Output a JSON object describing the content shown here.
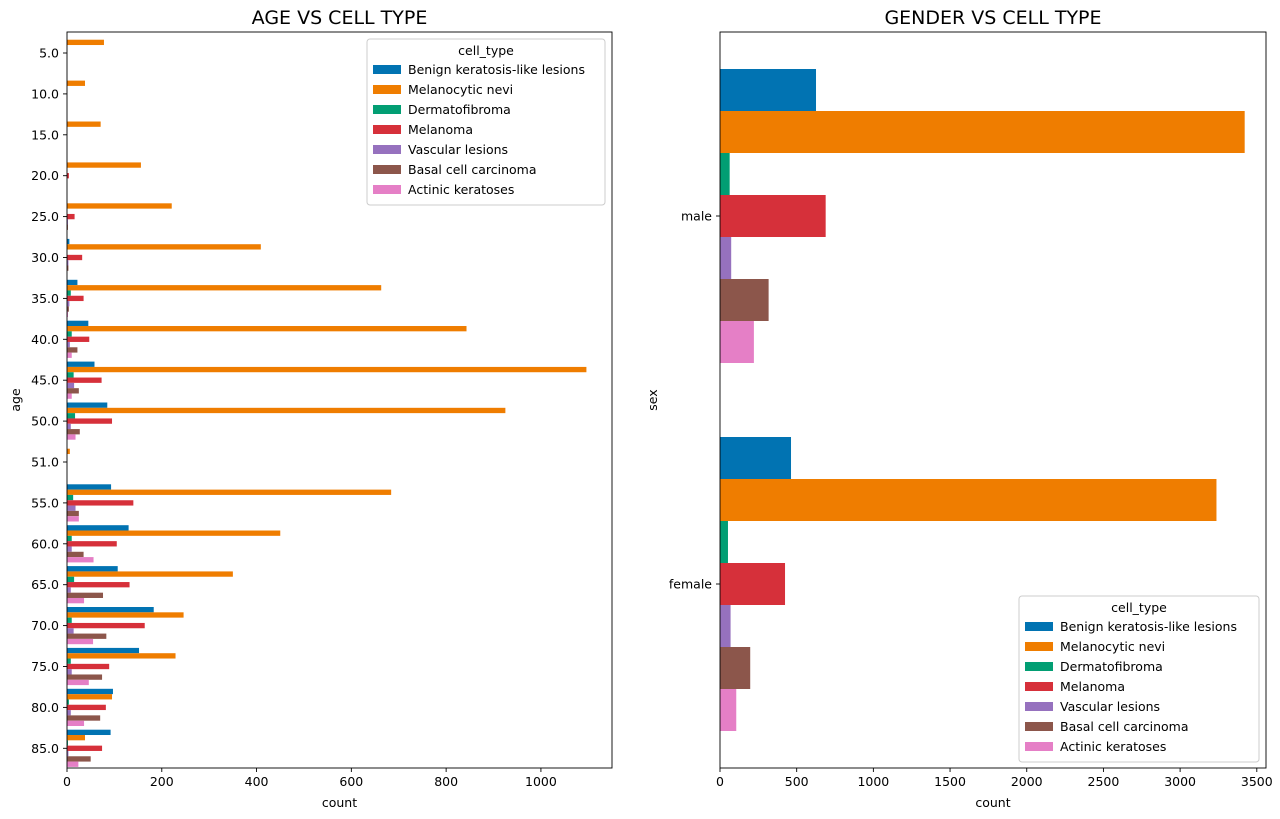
{
  "colors": {
    "Benign keratosis-like lesions": "#0173b2",
    "Melanocytic nevi": "#ef7d00",
    "Dermatofibroma": "#029e73",
    "Melanoma": "#d6303a",
    "Vascular lesions": "#9671be",
    "Basal cell carcinoma": "#8c564b",
    "Actinic keratoses": "#e57fc6"
  },
  "chart_data": [
    {
      "type": "bar",
      "orientation": "horizontal",
      "title": "AGE VS CELL TYPE",
      "xlabel": "count",
      "ylabel": "age",
      "xlim": [
        0,
        1150
      ],
      "xticks": [
        0,
        200,
        400,
        600,
        800,
        1000
      ],
      "legend": {
        "title": "cell_type",
        "placement": "top-right"
      },
      "categories": [
        "5.0",
        "10.0",
        "15.0",
        "20.0",
        "25.0",
        "30.0",
        "35.0",
        "40.0",
        "45.0",
        "50.0",
        "51.0",
        "55.0",
        "60.0",
        "65.0",
        "70.0",
        "75.0",
        "80.0",
        "85.0"
      ],
      "series": [
        {
          "name": "Benign keratosis-like lesions",
          "values": [
            0,
            0,
            0,
            0,
            0,
            5,
            22,
            45,
            58,
            85,
            0,
            93,
            130,
            107,
            183,
            152,
            97,
            92
          ]
        },
        {
          "name": "Melanocytic nevi",
          "values": [
            78,
            38,
            71,
            156,
            221,
            409,
            663,
            843,
            1096,
            925,
            6,
            684,
            450,
            350,
            246,
            229,
            95,
            38
          ]
        },
        {
          "name": "Dermatofibroma",
          "values": [
            0,
            0,
            0,
            0,
            0,
            0,
            8,
            10,
            14,
            17,
            0,
            13,
            10,
            15,
            10,
            8,
            4,
            2
          ]
        },
        {
          "name": "Melanoma",
          "values": [
            0,
            0,
            0,
            4,
            16,
            32,
            35,
            47,
            73,
            95,
            0,
            140,
            105,
            132,
            164,
            89,
            82,
            74
          ]
        },
        {
          "name": "Vascular lesions",
          "values": [
            0,
            0,
            0,
            0,
            2,
            3,
            5,
            6,
            15,
            8,
            0,
            18,
            10,
            8,
            14,
            10,
            8,
            3
          ]
        },
        {
          "name": "Basal cell carcinoma",
          "values": [
            0,
            0,
            0,
            0,
            2,
            3,
            4,
            22,
            25,
            27,
            0,
            25,
            35,
            76,
            83,
            74,
            70,
            50
          ]
        },
        {
          "name": "Actinic keratoses",
          "values": [
            0,
            0,
            0,
            0,
            0,
            0,
            2,
            10,
            10,
            18,
            0,
            25,
            56,
            36,
            55,
            46,
            36,
            24
          ]
        }
      ]
    },
    {
      "type": "bar",
      "orientation": "horizontal",
      "title": "GENDER VS CELL TYPE",
      "xlabel": "count",
      "ylabel": "sex",
      "xlim": [
        0,
        3560
      ],
      "xticks": [
        0,
        500,
        1000,
        1500,
        2000,
        2500,
        3000,
        3500
      ],
      "legend": {
        "title": "cell_type",
        "placement": "bottom-right"
      },
      "categories": [
        "male",
        "female"
      ],
      "series": [
        {
          "name": "Benign keratosis-like lesions",
          "values": [
            626,
            463
          ]
        },
        {
          "name": "Melanocytic nevi",
          "values": [
            3421,
            3237
          ]
        },
        {
          "name": "Dermatofibroma",
          "values": [
            63,
            52
          ]
        },
        {
          "name": "Melanoma",
          "values": [
            689,
            424
          ]
        },
        {
          "name": "Vascular lesions",
          "values": [
            73,
            69
          ]
        },
        {
          "name": "Basal cell carcinoma",
          "values": [
            317,
            197
          ]
        },
        {
          "name": "Actinic keratoses",
          "values": [
            221,
            106
          ]
        }
      ]
    }
  ]
}
